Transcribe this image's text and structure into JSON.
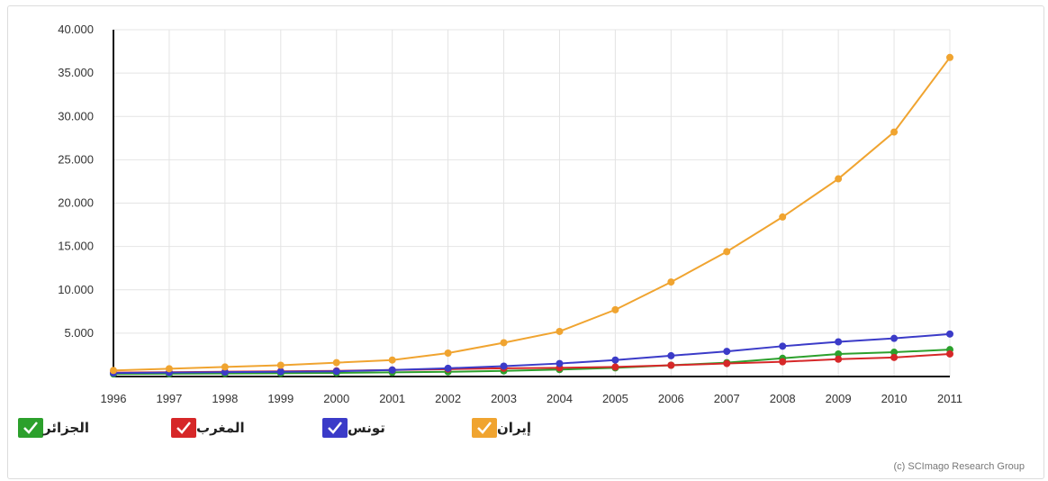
{
  "chart_data": {
    "type": "line",
    "x": [
      "1996",
      "1997",
      "1998",
      "1999",
      "2000",
      "2001",
      "2002",
      "2003",
      "2004",
      "2005",
      "2006",
      "2007",
      "2008",
      "2009",
      "2010",
      "2011"
    ],
    "ylim": [
      0,
      40000
    ],
    "y_ticks": [
      "5.000",
      "10.000",
      "15.000",
      "20.000",
      "25.000",
      "30.000",
      "35.000",
      "40.000"
    ],
    "grid": true,
    "legend_position": "bottom-left",
    "series": [
      {
        "name": "الجزائر",
        "color": "#2ca02c",
        "values": [
          300,
          320,
          350,
          380,
          420,
          480,
          540,
          650,
          800,
          1000,
          1300,
          1600,
          2100,
          2600,
          2800,
          3100
        ]
      },
      {
        "name": "المغرب",
        "color": "#d62728",
        "values": [
          450,
          500,
          550,
          600,
          650,
          750,
          850,
          950,
          1000,
          1100,
          1300,
          1500,
          1700,
          2000,
          2200,
          2600
        ]
      },
      {
        "name": "تونس",
        "color": "#3b3bc8",
        "values": [
          400,
          450,
          500,
          550,
          600,
          750,
          950,
          1200,
          1500,
          1900,
          2400,
          2900,
          3500,
          4000,
          4400,
          4900
        ]
      },
      {
        "name": "إيران",
        "color": "#f0a430",
        "values": [
          700,
          900,
          1100,
          1300,
          1600,
          1900,
          2700,
          3900,
          5200,
          7700,
          10900,
          14400,
          18400,
          22800,
          28200,
          36800
        ]
      }
    ]
  },
  "credit": "(c) SCImago Research Group"
}
